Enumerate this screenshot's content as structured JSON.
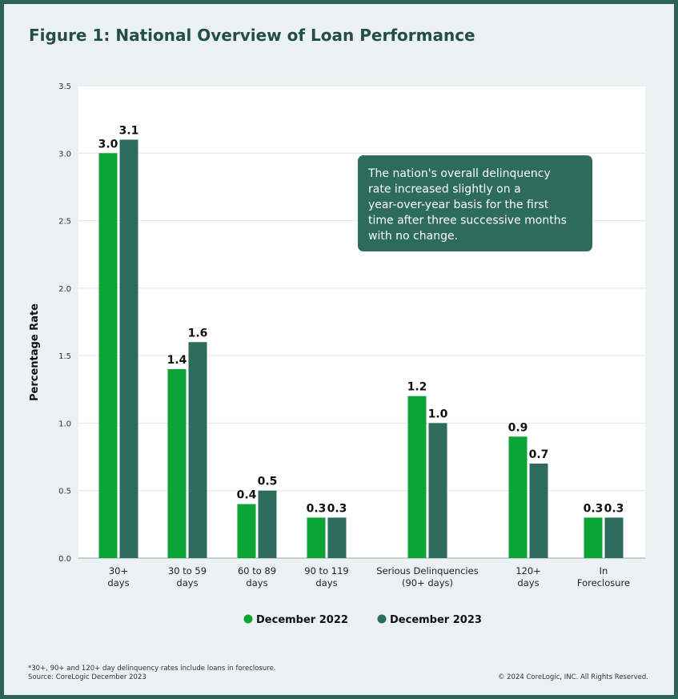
{
  "title": "Figure 1: National Overview of Loan Performance",
  "chart_data": {
    "type": "bar",
    "ylabel": "Percentage Rate",
    "ylim": [
      0,
      3.5
    ],
    "yticks": [
      "0.0",
      "0.5",
      "1.0",
      "1.5",
      "2.0",
      "2.5",
      "3.0",
      "3.5"
    ],
    "categories": [
      [
        "30+",
        "days"
      ],
      [
        "30 to 59",
        "days"
      ],
      [
        "60 to 89",
        "days"
      ],
      [
        "90 to 119",
        "days"
      ],
      [
        "Serious Delinquencies",
        "(90+ days)"
      ],
      [
        "120+",
        "days"
      ],
      [
        "In",
        "Foreclosure"
      ]
    ],
    "series": [
      {
        "name": "December 2022",
        "color": "#0ba535",
        "values": [
          3.0,
          1.4,
          0.4,
          0.3,
          1.2,
          0.9,
          0.3
        ]
      },
      {
        "name": "December 2023",
        "color": "#2d6b5f",
        "values": [
          3.1,
          1.6,
          0.5,
          0.3,
          1.0,
          0.7,
          0.3
        ]
      }
    ],
    "annotation": [
      "The nation's overall delinquency",
      "rate increased slightly on a",
      "year-over-year basis for the first",
      "time after three successive months",
      "with no change."
    ],
    "annotation_color": "#2d6b5f"
  },
  "footer": {
    "note_line1": "*30+, 90+ and 120+ day delinquency rates include loans in foreclosure.",
    "note_line2": "Source: CoreLogic December 2023",
    "copyright": "© 2024 CoreLogic, INC. All Rights Reserved."
  }
}
